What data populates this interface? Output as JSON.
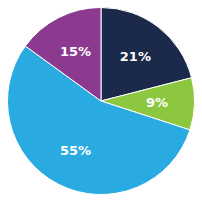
{
  "chart_data": {
    "type": "pie",
    "values": [
      21,
      9,
      55,
      15
    ],
    "value_labels": [
      "21%",
      "9%",
      "55%",
      "15%"
    ],
    "colors": [
      "#1b2a4a",
      "#8dc63f",
      "#29abe2",
      "#8b3a8f"
    ],
    "data_labels": true
  }
}
